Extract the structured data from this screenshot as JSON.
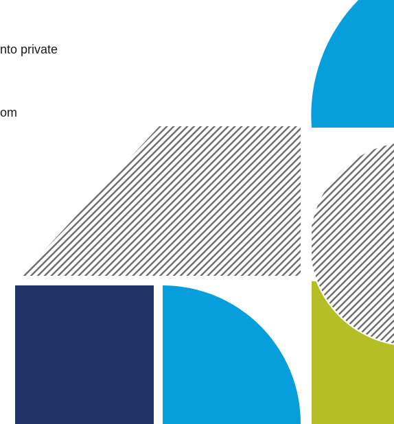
{
  "text": {
    "line1": "nto private",
    "line2": "om"
  },
  "colors": {
    "blue": "#069fdb",
    "navy": "#213366",
    "green": "#b5be27",
    "hatch": "#6b6b6b",
    "background": "#ffffff"
  }
}
